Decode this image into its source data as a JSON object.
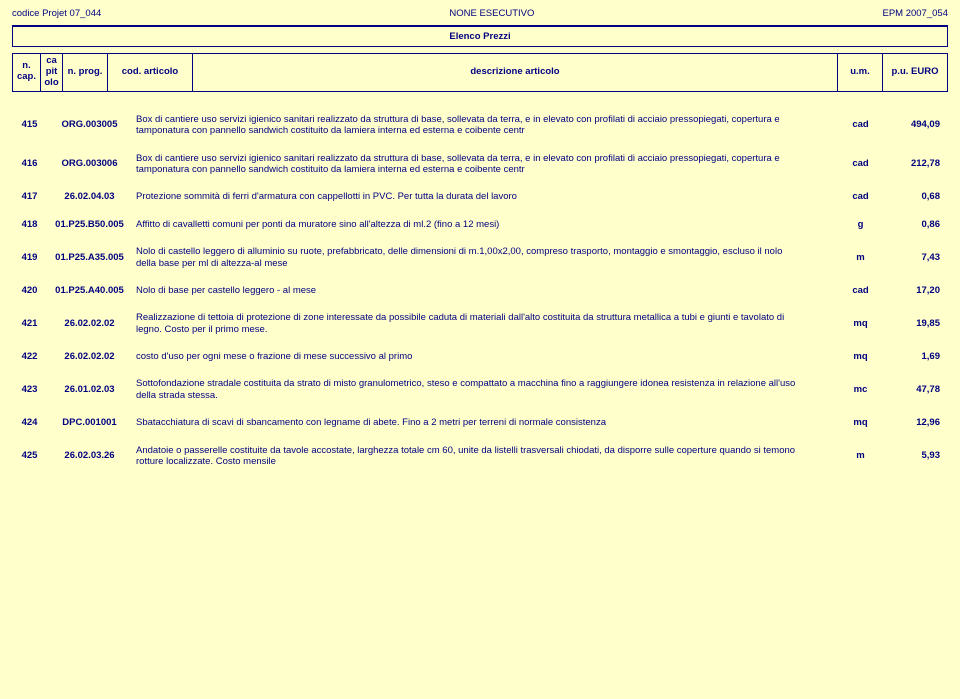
{
  "header": {
    "left": "codice Projet 07_044",
    "center": "NONE ESECUTIVO",
    "right": "EPM 2007_054"
  },
  "title": "Elenco Prezzi",
  "cols": {
    "cap": "n. cap.",
    "pit": "ca pit olo",
    "prog": "n. prog.",
    "articolo": "cod. articolo",
    "desc": "descrizione articolo",
    "um": "u.m.",
    "pu": "p.u. EURO"
  },
  "rows": [
    {
      "n": "415",
      "art": "ORG.003005",
      "desc": "Box di cantiere uso servizi igienico sanitari realizzato da struttura di base, sollevata da terra, e in elevato con profilati di acciaio pressopiegati, copertura e tamponatura con pannello sandwich costituito da lamiera interna ed esterna e coibente centr",
      "um": "cad",
      "pu": "494,09"
    },
    {
      "n": "416",
      "art": "ORG.003006",
      "desc": "Box di cantiere uso servizi igienico sanitari realizzato da struttura di base, sollevata da terra, e in elevato con profilati di acciaio pressopiegati, copertura e tamponatura con pannello sandwich costituito da lamiera interna ed esterna e coibente centr",
      "um": "cad",
      "pu": "212,78"
    },
    {
      "n": "417",
      "art": "26.02.04.03",
      "desc": "Protezione sommità di ferri d'armatura con cappellotti in PVC. Per tutta la durata del lavoro",
      "um": "cad",
      "pu": "0,68"
    },
    {
      "n": "418",
      "art": "01.P25.B50.005",
      "desc": "Affitto di cavalletti comuni per ponti da muratore sino all'altezza di ml.2 (fino a 12 mesi)",
      "um": "g",
      "pu": "0,86"
    },
    {
      "n": "419",
      "art": "01.P25.A35.005",
      "desc": "Nolo di castello leggero di alluminio su ruote, prefabbricato, delle dimensioni di m.1,00x2,00, compreso trasporto, montaggio e smontaggio, escluso il nolo della base per ml di altezza-al mese",
      "um": "m",
      "pu": "7,43"
    },
    {
      "n": "420",
      "art": "01.P25.A40.005",
      "desc": "Nolo di base per castello leggero - al mese",
      "um": "cad",
      "pu": "17,20"
    },
    {
      "n": "421",
      "art": "26.02.02.02",
      "desc": "Realizzazione di tettoia di protezione di zone interessate da possibile caduta di materiali dall'alto costituita da struttura metallica a tubi e giunti e tavolato di legno. Costo per il primo mese.",
      "um": "mq",
      "pu": "19,85"
    },
    {
      "n": "422",
      "art": "26.02.02.02",
      "desc": "costo d'uso per ogni mese o frazione di mese successivo al primo",
      "um": "mq",
      "pu": "1,69"
    },
    {
      "n": "423",
      "art": "26.01.02.03",
      "desc": "Sottofondazione stradale costituita da strato di misto granulometrico, steso e compattato a macchina fino a raggiungere idonea resistenza in relazione all'uso della strada stessa.",
      "um": "mc",
      "pu": "47,78"
    },
    {
      "n": "424",
      "art": "DPC.001001",
      "desc": "Sbatacchiatura di scavi di sbancamento con legname di abete. Fino a 2 metri per terreni di normale consistenza",
      "um": "mq",
      "pu": "12,96"
    },
    {
      "n": "425",
      "art": "26.02.03.26",
      "desc": "Andatoie o passerelle costituite da tavole accostate, larghezza totale cm 60, unite da listelli trasversali chiodati, da disporre sulle coperture quando si temono rotture localizzate. Costo mensile",
      "um": "m",
      "pu": "5,93"
    }
  ]
}
